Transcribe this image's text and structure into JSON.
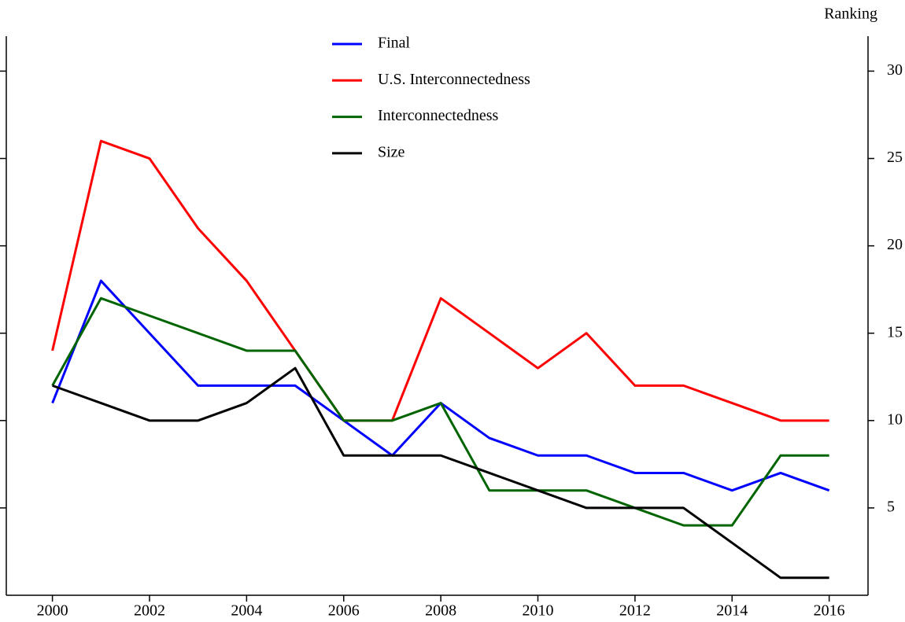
{
  "chart_data": {
    "type": "line",
    "y_axis_label": "Ranking",
    "x": [
      2000,
      2001,
      2002,
      2003,
      2004,
      2005,
      2006,
      2007,
      2008,
      2009,
      2010,
      2011,
      2012,
      2013,
      2014,
      2015,
      2016
    ],
    "series": [
      {
        "name": "Final",
        "color": "#0000ff",
        "values": [
          11,
          18,
          15,
          12,
          12,
          12,
          10,
          8,
          11,
          9,
          8,
          8,
          7,
          7,
          6,
          7,
          6
        ]
      },
      {
        "name": "U.S. Interconnectedness",
        "color": "#ff0000",
        "values": [
          14,
          26,
          25,
          21,
          18,
          14,
          10,
          10,
          17,
          15,
          13,
          15,
          12,
          12,
          11,
          10,
          10
        ]
      },
      {
        "name": "Interconnectedness",
        "color": "#006400",
        "values": [
          12,
          17,
          16,
          15,
          14,
          14,
          10,
          10,
          11,
          6,
          6,
          6,
          5,
          4,
          4,
          8,
          8
        ]
      },
      {
        "name": "Size",
        "color": "#000000",
        "values": [
          12,
          11,
          10,
          10,
          11,
          13,
          8,
          8,
          8,
          7,
          6,
          5,
          5,
          5,
          3,
          1,
          1
        ]
      }
    ],
    "xlim": [
      1999.05,
      2016.8
    ],
    "xticks": [
      2000,
      2002,
      2004,
      2006,
      2008,
      2010,
      2012,
      2014,
      2016
    ],
    "ylim": [
      0,
      32
    ],
    "yticks": [
      5,
      10,
      15,
      20,
      25,
      30
    ],
    "legend": "top"
  }
}
